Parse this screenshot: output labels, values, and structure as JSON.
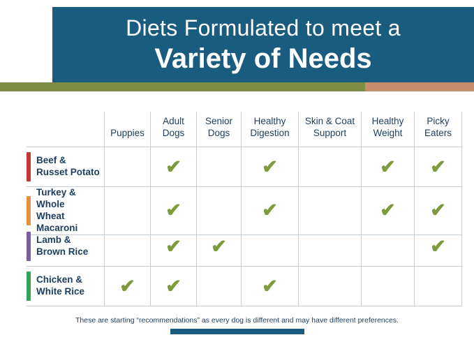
{
  "header": {
    "title_regular": "Diets Formulated to meet a",
    "title_bold": "Variety of Needs"
  },
  "colors": {
    "header_bg": "#1a5c80",
    "strip_green": "#7e8d45",
    "strip_salmon": "#c78e6b",
    "check": "#7d9b3d",
    "text_navy": "#1d3d5f",
    "grid": "#c4ced6"
  },
  "column_header_lines": [
    [
      "Puppies"
    ],
    [
      "Adult",
      "Dogs"
    ],
    [
      "Senior",
      "Dogs"
    ],
    [
      "Healthy",
      "Digestion"
    ],
    [
      "Skin & Coat",
      "Support"
    ],
    [
      "Healthy",
      "Weight"
    ],
    [
      "Picky",
      "Eaters"
    ]
  ],
  "chart_data": {
    "type": "table",
    "title": "Diets Formulated to meet a Variety of Needs",
    "check_glyph": "✔",
    "columns": [
      "Puppies",
      "Adult Dogs",
      "Senior Dogs",
      "Healthy Digestion",
      "Skin & Coat Support",
      "Healthy Weight",
      "Picky Eaters"
    ],
    "rows": [
      {
        "label": "Beef & Russet Potato",
        "label_lines": [
          "Beef &",
          "Russet Potato"
        ],
        "accent_color": "#c13a31",
        "checks": [
          false,
          true,
          false,
          true,
          false,
          true,
          true
        ]
      },
      {
        "label": "Turkey & Whole Wheat Macaroni",
        "label_lines": [
          "Turkey & Whole",
          "Wheat Macaroni"
        ],
        "accent_color": "#e1913f",
        "checks": [
          false,
          true,
          false,
          true,
          false,
          true,
          true
        ]
      },
      {
        "label": "Lamb & Brown Rice",
        "label_lines": [
          "Lamb &",
          "Brown Rice"
        ],
        "accent_color": "#7a5da3",
        "checks": [
          false,
          true,
          true,
          false,
          false,
          false,
          true
        ]
      },
      {
        "label": "Chicken & White Rice",
        "label_lines": [
          "Chicken &",
          "White Rice"
        ],
        "accent_color": "#33a457",
        "checks": [
          true,
          true,
          false,
          true,
          false,
          false,
          false
        ]
      }
    ]
  },
  "footer": {
    "note": "These are starting “recommendations” as every dog is different and may have different preferences."
  }
}
